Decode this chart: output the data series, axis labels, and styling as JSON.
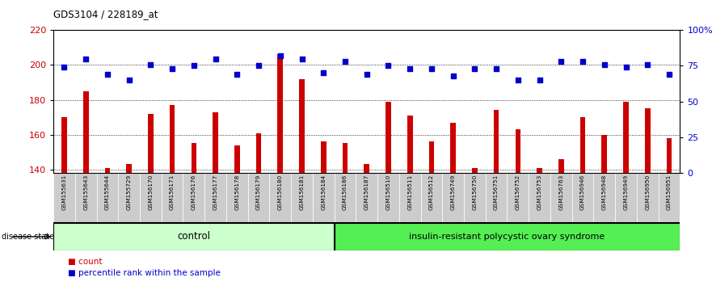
{
  "title": "GDS3104 / 228189_at",
  "samples": [
    "GSM155631",
    "GSM155643",
    "GSM155644",
    "GSM155729",
    "GSM156170",
    "GSM156171",
    "GSM156176",
    "GSM156177",
    "GSM156178",
    "GSM156179",
    "GSM156180",
    "GSM156181",
    "GSM156184",
    "GSM156186",
    "GSM156187",
    "GSM156510",
    "GSM156511",
    "GSM156512",
    "GSM156749",
    "GSM156750",
    "GSM156751",
    "GSM156752",
    "GSM156753",
    "GSM156763",
    "GSM156946",
    "GSM156948",
    "GSM156949",
    "GSM156950",
    "GSM156951"
  ],
  "bar_values": [
    170,
    185,
    141,
    143,
    172,
    177,
    155,
    173,
    154,
    161,
    206,
    192,
    156,
    155,
    143,
    179,
    171,
    156,
    167,
    141,
    174,
    163,
    141,
    146,
    170,
    160,
    179,
    175,
    158
  ],
  "percentile_values_pct": [
    74,
    80,
    69,
    65,
    76,
    73,
    75,
    80,
    69,
    75,
    82,
    80,
    70,
    78,
    69,
    75,
    73,
    73,
    68,
    73,
    73,
    65,
    65,
    78,
    78,
    76,
    74,
    76,
    69
  ],
  "group_labels": [
    "control",
    "insulin-resistant polycystic ovary syndrome"
  ],
  "group_sizes": [
    13,
    16
  ],
  "ylim_left": [
    138,
    220
  ],
  "ylim_right": [
    0,
    100
  ],
  "yticks_left": [
    140,
    160,
    180,
    200,
    220
  ],
  "yticks_right": [
    0,
    25,
    50,
    75,
    100
  ],
  "bar_color": "#cc0000",
  "dot_color": "#0000cc",
  "ctrl_color": "#ccffcc",
  "disease_color": "#55ee55",
  "ylabel_left_color": "#cc0000",
  "ylabel_right_color": "#0000cc",
  "legend_count_label": "count",
  "legend_pct_label": "percentile rank within the sample",
  "disease_state_label": "disease state"
}
